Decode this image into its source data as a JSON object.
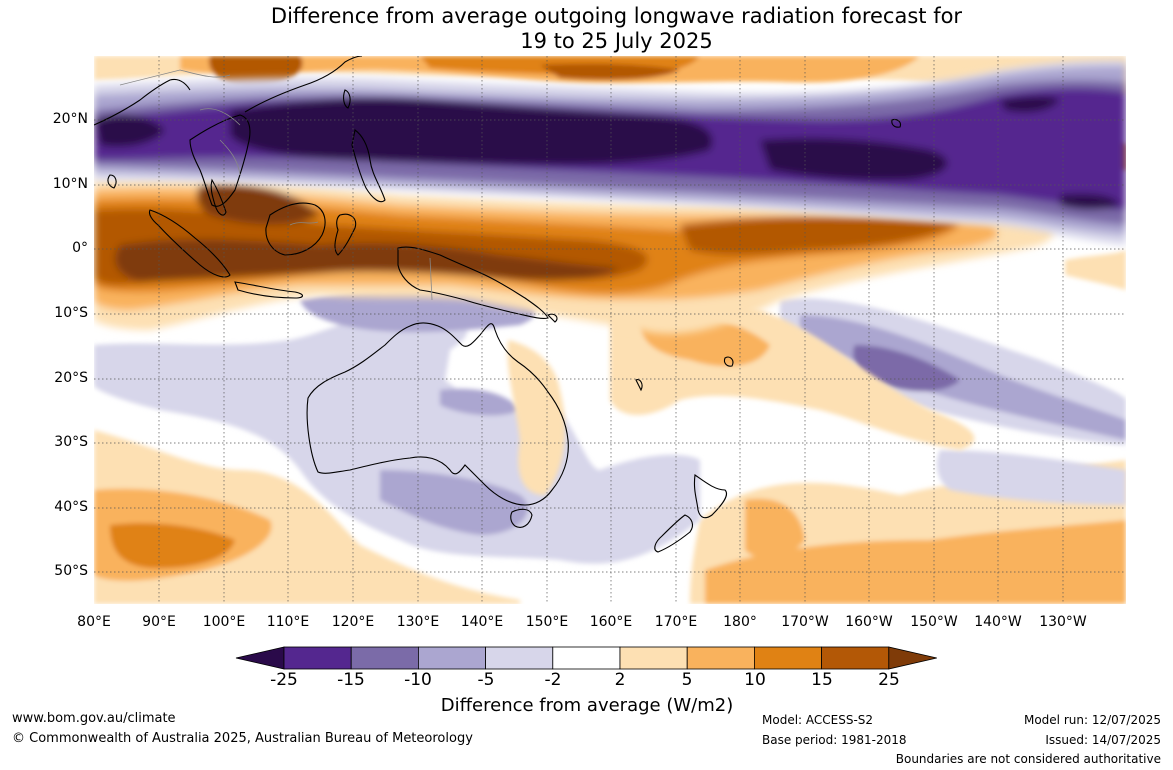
{
  "title": {
    "line1": "Difference from average outgoing longwave radiation forecast for",
    "line2": "19 to 25 July 2025"
  },
  "map": {
    "lat_labels": [
      "20°N",
      "10°N",
      "0°",
      "10°S",
      "20°S",
      "30°S",
      "40°S",
      "50°S"
    ],
    "lon_labels": [
      "80°E",
      "90°E",
      "100°E",
      "110°E",
      "120°E",
      "130°E",
      "140°E",
      "150°E",
      "160°E",
      "170°E",
      "180°",
      "170°W",
      "160°W",
      "150°W",
      "140°W",
      "130°W"
    ]
  },
  "colorbar": {
    "ticks": [
      "-25",
      "-15",
      "-10",
      "-5",
      "-2",
      "2",
      "5",
      "10",
      "15",
      "25"
    ],
    "colors": [
      "#2a0a4a",
      "#54278f",
      "#7b6ba8",
      "#aba6d0",
      "#d7d6ea",
      "#ffffff",
      "#fde0b3",
      "#f9b25d",
      "#e08214",
      "#b35806",
      "#7f3b08"
    ],
    "label": "Difference from average (W/m2)"
  },
  "footer": {
    "website": "www.bom.gov.au/climate",
    "copyright": "© Commonwealth of Australia 2025, Australian Bureau of Meteorology",
    "model": "Model: ACCESS-S2",
    "base_period": "Base period: 1981-2018",
    "model_run": "Model run: 12/07/2025",
    "issued": "Issued: 14/07/2025",
    "disclaimer": "Boundaries are not considered authoritative"
  }
}
